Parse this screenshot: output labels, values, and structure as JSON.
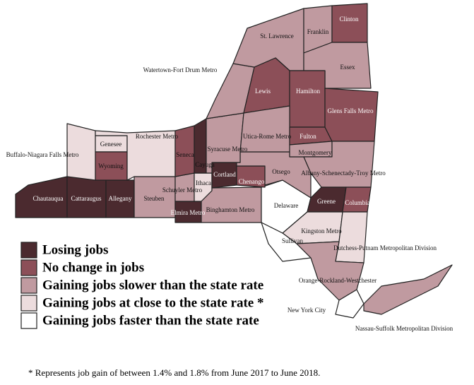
{
  "legend": {
    "items": [
      {
        "label": "Losing jobs",
        "color": "#4b2a2f",
        "regions": [
          "Chautauqua",
          "Cattaraugus",
          "Allegany",
          "Elmira Metro",
          "Cortland",
          "Greene",
          "Cayuga"
        ]
      },
      {
        "label": "No change in jobs",
        "color": "#8c4f58",
        "regions": [
          "Lewis",
          "Hamilton",
          "Clinton",
          "Fulton",
          "Chenango",
          "Seneca",
          "Columbia",
          "Glens Falls Metro",
          "Wyoming"
        ]
      },
      {
        "label": "Gaining jobs slower than the state rate",
        "color": "#c09aa0",
        "regions": [
          "St. Lawrence",
          "Franklin",
          "Essex",
          "Watertown-Fort Drum Metro",
          "Utica-Rome Metro",
          "Syracuse Metro",
          "Otsego",
          "Montgomery",
          "Albany-Schenectady-Troy Metro",
          "Steuben",
          "Binghamton Metro",
          "Orange-Rockland-Westchester",
          "Nassau-Suffolk Metropolitan Division",
          "Schuyler Metro"
        ]
      },
      {
        "label": "Gaining jobs at close to the state rate *",
        "color": "#ecdcdd",
        "regions": [
          "Buffalo-Niagara Falls Metro",
          "Rochester Metro",
          "Genesee",
          "Kingston Metro",
          "Dutchess-Putnam Metropolitan Division",
          "Ithaca"
        ]
      },
      {
        "label": "Gaining jobs faster than the state rate",
        "color": "#ffffff",
        "regions": [
          "Delaware",
          "Sullivan",
          "New York City"
        ]
      }
    ]
  },
  "footnote": "* Represents job gain of between 1.4% and 1.8% from June 2017 to June 2018."
}
